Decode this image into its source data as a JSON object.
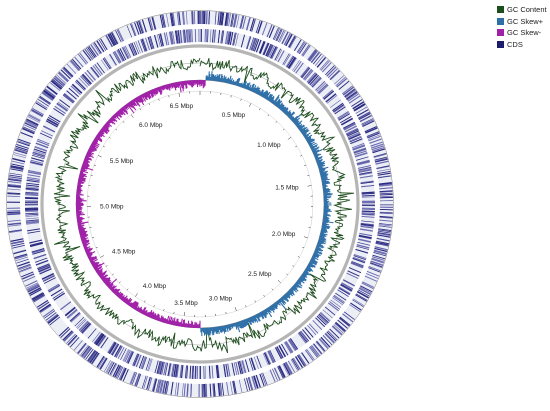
{
  "chart_data": {
    "type": "circular_genome_map",
    "genome_length_mbp": 6.7,
    "tick_labels": [
      {
        "label": "0.5 Mbp",
        "position_mbp": 0.5
      },
      {
        "label": "1.0 Mbp",
        "position_mbp": 1.0
      },
      {
        "label": "1.5 Mbp",
        "position_mbp": 1.5
      },
      {
        "label": "2.0 Mbp",
        "position_mbp": 2.0
      },
      {
        "label": "2.5 Mbp",
        "position_mbp": 2.5
      },
      {
        "label": "3.0 Mbp",
        "position_mbp": 3.0
      },
      {
        "label": "3.5 Mbp",
        "position_mbp": 3.5
      },
      {
        "label": "4.0 Mbp",
        "position_mbp": 4.0
      },
      {
        "label": "4.5 Mbp",
        "position_mbp": 4.5
      },
      {
        "label": "5.0 Mbp",
        "position_mbp": 5.0
      },
      {
        "label": "5.5 Mbp",
        "position_mbp": 5.5
      },
      {
        "label": "6.0 Mbp",
        "position_mbp": 6.0
      },
      {
        "label": "6.5 Mbp",
        "position_mbp": 6.5
      }
    ],
    "minor_tick_step_mbp": 0.1,
    "legend": [
      {
        "key": "gc_content",
        "label": "GC Content",
        "color": "#1d4d1d"
      },
      {
        "key": "gc_skew_plus",
        "label": "GC Skew+",
        "color": "#2e6fa8"
      },
      {
        "key": "gc_skew_minus",
        "label": "GC Skew-",
        "color": "#a020a8"
      },
      {
        "key": "cds",
        "label": "CDS",
        "color": "#1c1c6e"
      }
    ],
    "gc_skew_sign_change_mbp": [
      0.05,
      3.35
    ]
  },
  "colors": {
    "cds_fill": "#6b6bb0",
    "backbone": "#999999",
    "baseline": "#333333"
  }
}
